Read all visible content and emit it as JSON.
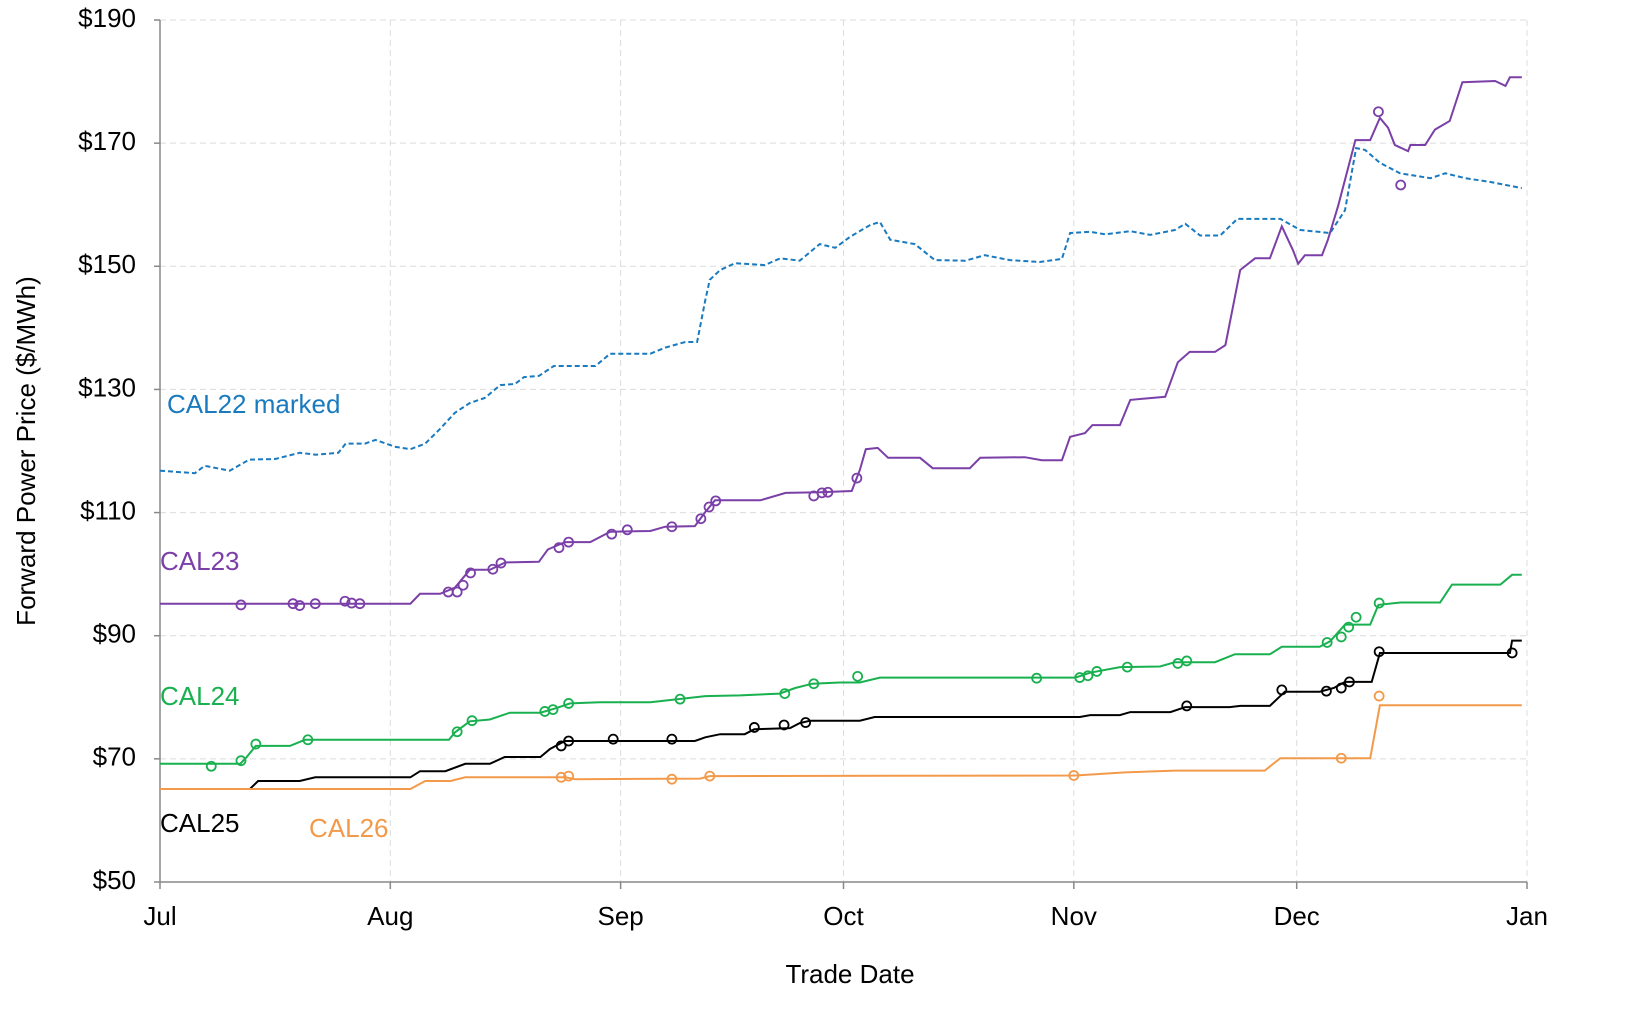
{
  "chart_data": {
    "type": "line",
    "x_label": "Trade Date",
    "y_label": "Forward Power Price ($/MWh)",
    "xlim": [
      0,
      184
    ],
    "xticks": [
      {
        "value": 0,
        "label": "Jul"
      },
      {
        "value": 31,
        "label": "Aug"
      },
      {
        "value": 62,
        "label": "Sep"
      },
      {
        "value": 92,
        "label": "Oct"
      },
      {
        "value": 123,
        "label": "Nov"
      },
      {
        "value": 153,
        "label": "Dec"
      },
      {
        "value": 184,
        "label": "Jan"
      }
    ],
    "ylim": [
      50,
      190
    ],
    "yticks": [
      {
        "value": 50,
        "label": "$50"
      },
      {
        "value": 70,
        "label": "$70"
      },
      {
        "value": 90,
        "label": "$90"
      },
      {
        "value": 110,
        "label": "$110"
      },
      {
        "value": 130,
        "label": "$130"
      },
      {
        "value": 150,
        "label": "$150"
      },
      {
        "value": 170,
        "label": "$170"
      },
      {
        "value": 190,
        "label": "$190"
      }
    ],
    "grid": true,
    "series": [
      {
        "name": "CAL22 marked",
        "color": "#1a7abf",
        "line_style": "dashed",
        "x": [
          0,
          4.7,
          6,
          9.4,
          12,
          15.5,
          18.8,
          21,
          24,
          25,
          27.6,
          29,
          31.6,
          33.7,
          35.7,
          37.7,
          39.7,
          41.7,
          43.7,
          45.8,
          47.8,
          49,
          51,
          53,
          56,
          58.6,
          60.6,
          66,
          68,
          70.7,
          72.3,
          73.4,
          74,
          75.4,
          77.4,
          81.4,
          83.5,
          86.1,
          88.8,
          90.9,
          92.9,
          95.6,
          96.9,
          98.3,
          101.6,
          104.3,
          108.4,
          111,
          114.4,
          118.4,
          121.4,
          122.5,
          125.2,
          127.2,
          130.6,
          133.3,
          136.6,
          138,
          140,
          142.7,
          145,
          150.8,
          153.5,
          157.5,
          159.5,
          161,
          162.2,
          164.2,
          166.9,
          171,
          173,
          175.7,
          179,
          183.3
        ],
        "values": [
          116.8,
          116.4,
          117.6,
          116.8,
          118.6,
          118.7,
          119.7,
          119.4,
          119.7,
          121.2,
          121.2,
          121.8,
          120.7,
          120.3,
          121.2,
          123.6,
          126.2,
          127.8,
          128.6,
          130.7,
          130.9,
          132,
          132.2,
          133.8,
          133.8,
          133.8,
          135.8,
          135.8,
          136.8,
          137.7,
          137.7,
          144.5,
          147.8,
          149.4,
          150.5,
          150.2,
          151.3,
          150.9,
          153.6,
          153,
          154.8,
          156.7,
          157.2,
          154.3,
          153.6,
          151,
          150.9,
          151.8,
          151,
          150.7,
          151.2,
          155.4,
          155.6,
          155.2,
          155.7,
          155.1,
          155.9,
          156.9,
          155,
          155,
          157.7,
          157.7,
          155.9,
          155.4,
          159.1,
          169.2,
          168.9,
          166.8,
          165.1,
          164.3,
          165.1,
          164.3,
          163.7,
          162.7
        ]
      },
      {
        "name": "CAL23",
        "color": "#7b3fa8",
        "line_style": "solid",
        "x": [
          0,
          33.7,
          35,
          37.7,
          39.7,
          41.7,
          44.4,
          46.5,
          51,
          52.2,
          54.5,
          57.9,
          60.6,
          66,
          68,
          72,
          73.4,
          74.7,
          80.8,
          84.2,
          88.8,
          93.1,
          94.2,
          95,
          96.6,
          98,
          102.3,
          104,
          109,
          110.4,
          116.4,
          118.7,
          121.4,
          122.5,
          124.5,
          125.5,
          129.2,
          130.6,
          135.3,
          137,
          138.6,
          142,
          143.4,
          145.4,
          147.4,
          149.4,
          151,
          152.5,
          153.2,
          154.1,
          156.4,
          157.2,
          158.6,
          160.9,
          162.9,
          164.2,
          165.3,
          166.2,
          168,
          168.3,
          170.3,
          171.6,
          173.6,
          175.3,
          179.7,
          181.1,
          181.7,
          183.3
        ],
        "values": [
          95.2,
          95.2,
          96.8,
          96.8,
          97.8,
          100.7,
          100.7,
          101.9,
          102,
          104,
          105.2,
          105.2,
          106.9,
          107,
          107.7,
          107.8,
          110.1,
          112,
          112,
          113.2,
          113.3,
          113.5,
          116.9,
          120.3,
          120.5,
          118.9,
          118.9,
          117.2,
          117.2,
          118.9,
          119,
          118.5,
          118.5,
          122.3,
          122.9,
          124.2,
          124.2,
          128.3,
          128.8,
          134.4,
          136.1,
          136.1,
          137.2,
          149.4,
          151.3,
          151.3,
          156.5,
          152.6,
          150.4,
          151.8,
          151.8,
          154.3,
          159.9,
          170.5,
          170.5,
          174.1,
          172.5,
          169.7,
          168.7,
          169.7,
          169.7,
          172.2,
          173.6,
          179.9,
          180.1,
          179.3,
          180.7,
          180.7
        ],
        "points_x": [
          10.9,
          17.9,
          18.8,
          20.9,
          24.9,
          25.8,
          26.9,
          38.8,
          40,
          40.8,
          41.8,
          44.8,
          45.9,
          53.7,
          55,
          60.8,
          62.9,
          68.9,
          72.8,
          73.9,
          74.8,
          88,
          89.1,
          89.9,
          93.8,
          164,
          167
        ],
        "points": [
          95,
          95.2,
          94.9,
          95.2,
          95.6,
          95.3,
          95.2,
          97.1,
          97.1,
          98.2,
          100.2,
          100.8,
          101.8,
          104.3,
          105.2,
          106.5,
          107.2,
          107.7,
          109,
          110.9,
          111.9,
          112.7,
          113.2,
          113.3,
          115.6,
          175.1,
          163.2
        ]
      },
      {
        "name": "CAL24",
        "color": "#19b050",
        "line_style": "solid",
        "x": [
          0,
          10.8,
          11.6,
          12.9,
          17.5,
          19.5,
          38.9,
          39.7,
          41.7,
          44.4,
          47.1,
          51.2,
          53.2,
          55.2,
          59.2,
          66,
          73.4,
          78.1,
          83.4,
          85.5,
          87.8,
          91.5,
          94.2,
          96.9,
          123.2,
          125.2,
          129.2,
          134.6,
          136.6,
          142,
          144.7,
          149.4,
          151,
          156.1,
          157.5,
          159.5,
          162.9,
          164,
          167,
          172.3,
          173.9,
          180.4,
          182,
          183.3
        ],
        "values": [
          69.2,
          69.2,
          70.2,
          72.1,
          72.1,
          73.1,
          73.1,
          74.3,
          76.1,
          76.4,
          77.5,
          77.5,
          78.2,
          79,
          79.2,
          79.2,
          80.2,
          80.3,
          80.6,
          81.5,
          82.2,
          82.4,
          82.4,
          83.2,
          83.2,
          84,
          84.9,
          85,
          85.7,
          85.7,
          87,
          87,
          88.2,
          88.2,
          89.1,
          91.8,
          91.8,
          95,
          95.4,
          95.4,
          98.3,
          98.3,
          99.9,
          99.9
        ],
        "points_x": [
          6.9,
          10.9,
          12.9,
          19.9,
          40,
          42,
          51.8,
          52.9,
          55,
          70,
          84.1,
          88,
          93.9,
          118,
          123.8,
          124.9,
          126.1,
          130.2,
          137,
          138.2,
          157.1,
          159,
          160,
          161,
          164.1
        ],
        "points": [
          68.8,
          69.7,
          72.4,
          73.1,
          74.4,
          76.2,
          77.7,
          78,
          79,
          79.7,
          80.6,
          82.2,
          83.4,
          83.1,
          83.2,
          83.5,
          84.2,
          84.9,
          85.5,
          85.9,
          88.9,
          89.8,
          91.4,
          93,
          95.3
        ]
      },
      {
        "name": "CAL25",
        "color": "#000000",
        "line_style": "solid",
        "x": [
          0,
          12.1,
          13.2,
          18.8,
          20.9,
          33.7,
          35,
          38.4,
          41.1,
          44.4,
          46.4,
          51.2,
          52.5,
          54.5,
          59.2,
          72,
          73.4,
          75.4,
          78.7,
          80,
          84.8,
          86.1,
          87.5,
          94.2,
          96.2,
          123.8,
          125.2,
          129.2,
          130.6,
          136,
          138,
          144,
          145.4,
          149.4,
          151.4,
          156.1,
          158,
          159.5,
          163.1,
          164.2,
          181.7,
          182,
          183.3
        ],
        "values": [
          65.1,
          65.1,
          66.4,
          66.4,
          67,
          67,
          68,
          68,
          69.2,
          69.2,
          70.3,
          70.3,
          71.6,
          72.9,
          72.9,
          72.9,
          73.5,
          74,
          74,
          74.8,
          75,
          75.8,
          76.2,
          76.2,
          76.8,
          76.8,
          77.1,
          77.1,
          77.6,
          77.6,
          78.4,
          78.4,
          78.6,
          78.6,
          80.9,
          80.9,
          81.5,
          82.5,
          82.5,
          87.2,
          87.2,
          89.2,
          89.2
        ],
        "points_x": [
          54,
          55,
          61,
          68.9,
          80,
          84,
          86.9,
          138.2,
          151,
          157,
          159,
          160.1,
          164.1,
          182
        ],
        "points": [
          72.1,
          72.9,
          73.2,
          73.2,
          75.1,
          75.5,
          75.9,
          78.6,
          81.2,
          81,
          81.5,
          82.5,
          87.4,
          87.2
        ]
      },
      {
        "name": "CAL26",
        "color": "#f39a4a",
        "line_style": "solid",
        "x": [
          0,
          33.7,
          35.7,
          39.1,
          41.1,
          54.5,
          55.9,
          72.7,
          74,
          123.2,
          129.9,
          136.6,
          148.7,
          150.8,
          153.5,
          162.9,
          164.2,
          183.3
        ],
        "values": [
          65.1,
          65.1,
          66.4,
          66.4,
          67,
          67,
          66.7,
          66.8,
          67.2,
          67.3,
          67.8,
          68.1,
          68.1,
          70.1,
          70.1,
          70.1,
          78.7,
          78.7
        ],
        "points_x": [
          54,
          55,
          68.9,
          74,
          123,
          159,
          164.1
        ],
        "points": [
          67,
          67.2,
          66.7,
          67.2,
          67.3,
          70.1,
          80.2
        ]
      }
    ]
  }
}
